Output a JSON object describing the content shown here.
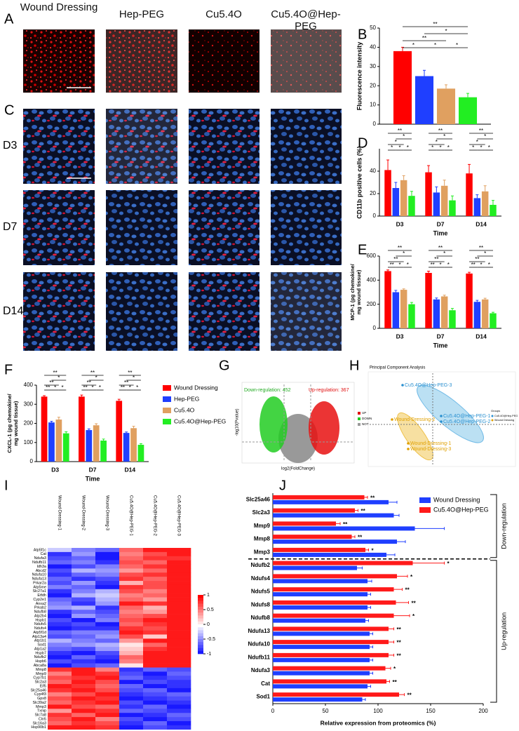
{
  "panel_labels": [
    "A",
    "B",
    "C",
    "D",
    "E",
    "F",
    "G",
    "H",
    "I",
    "J"
  ],
  "images": {
    "columns": [
      "Wound Dressing",
      "Hep-PEG",
      "Cu5.4O",
      "Cu5.4O@Hep-PEG"
    ],
    "rows": [
      "D3",
      "D7",
      "D14"
    ]
  },
  "volcano": {
    "down": "Down-regulation: 452",
    "up": "Up-regulation: 367",
    "ylabel": "-log10(Pvalue)",
    "xlabel": "log2(FoldChange)",
    "legend": [
      "UP",
      "DOWN",
      "NOT"
    ]
  },
  "pca": {
    "title": "Principal Component Analysis",
    "points": [
      "Cu5.4O@Hep-PEG-3",
      "Cu5.4O@Hep-PEG-1",
      "Cu5.4O@Hep-PEG-2",
      "Wound-Dressing-2",
      "Wound-Dressing-1",
      "Wound-Dressing-3"
    ],
    "legend_title": "Groups",
    "legend": [
      "Cu5.4O@Hep-PEG",
      "Wound Dressing"
    ]
  },
  "chart_data": [
    {
      "type": "bar",
      "ylabel": "Fluorescence intensity",
      "values": [
        38,
        25,
        18.5,
        14
      ],
      "errors": [
        2,
        3,
        2,
        2
      ],
      "colors": [
        "#ff0000",
        "#1f3fff",
        "#e0a060",
        "#22ee22"
      ],
      "ylim": [
        0,
        50
      ],
      "yticks": [
        0,
        10,
        20,
        30,
        40,
        50
      ],
      "brackets": [
        {
          "pair": [
            0,
            3
          ],
          "text": "**"
        },
        {
          "pair": [
            1,
            3
          ],
          "text": "*"
        },
        {
          "pair": [
            0,
            2
          ],
          "text": "**"
        },
        {
          "pair": [
            0,
            1
          ],
          "text": "*"
        },
        {
          "pair": [
            1,
            2
          ],
          "text": "*"
        },
        {
          "pair": [
            2,
            3
          ],
          "text": "*"
        }
      ]
    },
    {
      "type": "grouped_bar",
      "ylabel": "CD11b positive cells (%)",
      "xlabel": "Time",
      "categories": [
        "D3",
        "D7",
        "D14"
      ],
      "series": [
        {
          "color": "#ff0000",
          "values": [
            41,
            39,
            38
          ],
          "errors": [
            9,
            6,
            8
          ]
        },
        {
          "color": "#1f3fff",
          "values": [
            25,
            21,
            16
          ],
          "errors": [
            5,
            5,
            3
          ]
        },
        {
          "color": "#e0a060",
          "values": [
            32,
            27,
            22
          ],
          "errors": [
            4,
            5,
            5
          ]
        },
        {
          "color": "#22ee22",
          "values": [
            18,
            14,
            10
          ],
          "errors": [
            4,
            4,
            4
          ]
        }
      ],
      "ylim": [
        0,
        60
      ],
      "yticks": [
        0,
        20,
        40
      ],
      "brackets": [
        {
          "pair": [
            0,
            3
          ],
          "text": "**"
        },
        {
          "pair": [
            1,
            3
          ],
          "text": "*"
        },
        {
          "pair": [
            0,
            2
          ],
          "text": "*"
        },
        {
          "pair": [
            0,
            1
          ],
          "text": "*"
        },
        {
          "pair": [
            1,
            2
          ],
          "text": "*"
        },
        {
          "pair": [
            2,
            3
          ],
          "text": "*"
        }
      ]
    },
    {
      "type": "grouped_bar",
      "ylabel": "MCP-1 (pg chemokine/ mg wound tissue)",
      "xlabel": "Time",
      "categories": [
        "D3",
        "D7",
        "D14"
      ],
      "series": [
        {
          "color": "#ff0000",
          "values": [
            475,
            460,
            455
          ],
          "errors": [
            10,
            15,
            10
          ]
        },
        {
          "color": "#1f3fff",
          "values": [
            300,
            240,
            220
          ],
          "errors": [
            15,
            12,
            12
          ]
        },
        {
          "color": "#e0a060",
          "values": [
            320,
            265,
            240
          ],
          "errors": [
            8,
            10,
            10
          ]
        },
        {
          "color": "#22ee22",
          "values": [
            200,
            150,
            125
          ],
          "errors": [
            15,
            15,
            8
          ]
        }
      ],
      "ylim": [
        0,
        600
      ],
      "yticks": [
        0,
        200,
        400,
        600
      ],
      "brackets": [
        {
          "pair": [
            0,
            3
          ],
          "text": "**"
        },
        {
          "pair": [
            1,
            3
          ],
          "text": "*"
        },
        {
          "pair": [
            0,
            2
          ],
          "text": "**"
        },
        {
          "pair": [
            0,
            1
          ],
          "text": "**"
        },
        {
          "pair": [
            1,
            2
          ],
          "text": "*"
        },
        {
          "pair": [
            2,
            3
          ],
          "text": "*"
        }
      ]
    },
    {
      "type": "grouped_bar",
      "ylabel": "CXCL-1 (pg chemokine/ mg wound tissue)",
      "xlabel": "Time",
      "categories": [
        "D3",
        "D7",
        "D14"
      ],
      "legend": "right",
      "series": [
        {
          "name": "Wound Dressing",
          "color": "#ff0000",
          "values": [
            340,
            340,
            318
          ],
          "errors": [
            5,
            8,
            8
          ]
        },
        {
          "name": "Hep-PEG",
          "color": "#1f3fff",
          "values": [
            205,
            165,
            150
          ],
          "errors": [
            6,
            6,
            5
          ]
        },
        {
          "name": "Cu5.4O",
          "color": "#e0a060",
          "values": [
            220,
            190,
            175
          ],
          "errors": [
            12,
            8,
            10
          ]
        },
        {
          "name": "Cu5.4O@Hep-PEG",
          "color": "#22ee22",
          "values": [
            148,
            110,
            88
          ],
          "errors": [
            8,
            8,
            6
          ]
        }
      ],
      "ylim": [
        0,
        400
      ],
      "yticks": [
        0,
        100,
        200,
        300,
        400
      ],
      "brackets": [
        {
          "pair": [
            0,
            3
          ],
          "text": "**"
        },
        {
          "pair": [
            1,
            3
          ],
          "text": "*"
        },
        {
          "pair": [
            0,
            2
          ],
          "text": "**"
        },
        {
          "pair": [
            0,
            1
          ],
          "text": "**"
        },
        {
          "pair": [
            1,
            2
          ],
          "text": "*"
        },
        {
          "pair": [
            2,
            3
          ],
          "text": "*"
        }
      ]
    },
    {
      "type": "hbar_grouped",
      "xlabel": "Relative expression from proteomics (%)",
      "legend": "top-right",
      "categories": [
        "Slc25a46",
        "Slc2a3",
        "Mmp9",
        "Mmp8",
        "Mmp3",
        "Ndufb2",
        "Ndufs4",
        "Ndufs5",
        "Ndufs8",
        "Ndufb8",
        "Ndufa13",
        "Ndufa10",
        "Ndufb11",
        "Ndufa3",
        "Cat",
        "Sod1"
      ],
      "series": [
        {
          "name": "Wound Dressing",
          "color": "#1f3fff",
          "values": [
            110,
            115,
            135,
            118,
            108,
            80,
            90,
            90,
            90,
            88,
            92,
            92,
            92,
            92,
            90,
            85
          ],
          "errors": [
            8,
            5,
            28,
            8,
            8,
            5,
            4,
            3,
            3,
            3,
            3,
            3,
            3,
            3,
            3,
            3
          ]
        },
        {
          "name": "Cu5.4O@Hep-PEG",
          "color": "#ff1a1a",
          "values": [
            87,
            78,
            60,
            75,
            88,
            133,
            118,
            115,
            117,
            115,
            110,
            110,
            110,
            107,
            108,
            120
          ],
          "errors": [
            3,
            3,
            4,
            3,
            3,
            30,
            10,
            8,
            12,
            15,
            5,
            5,
            5,
            5,
            3,
            5
          ]
        }
      ],
      "sig": [
        "**",
        "**",
        "**",
        "**",
        "*",
        "*",
        "*",
        "**",
        "**",
        "*",
        "**",
        "**",
        "**",
        "*",
        "**",
        "**"
      ],
      "groups": [
        {
          "label": "Down-regulation",
          "range": [
            0,
            4
          ]
        },
        {
          "label": "Up-regulation",
          "range": [
            5,
            15
          ]
        }
      ],
      "xlim": [
        0,
        200
      ],
      "xticks": [
        0,
        50,
        100,
        150,
        200
      ]
    },
    {
      "type": "heatmap",
      "columns": [
        "Wound-Dressing-1",
        "Wound-Dressing-2",
        "Wound-Dressing-3",
        "Cu5.4O@Hep-PEG-1",
        "Cu5.4O@Hep-PEG-2",
        "Cu5.4O@Hep-PEG-3"
      ],
      "rows": [
        "Atp5f1c",
        "Cat",
        "Ndufa3",
        "Ndufb11",
        "Idh3a",
        "Abcd2",
        "Ndufa10",
        "Ndufa13",
        "Prkar2a",
        "Atp5me",
        "Slc27a1",
        "Etfdh",
        "Cyp2e1",
        "Anxa2",
        "Prkab2",
        "Ndufb8",
        "Atp2b4",
        "Hspb1",
        "Ndufs5",
        "Ndufs4",
        "Atp5f1d",
        "Atp13a4",
        "Atp1b1",
        "Sod1",
        "Atp1a2",
        "Hspb7",
        "Ndufb2",
        "Hspb6",
        "Abca8a",
        "Mmp8",
        "Mmp9",
        "Cyp7b1",
        "Slc2a3",
        "Eif5",
        "Slc25a46",
        "Cyp4f3",
        "Gpx8",
        "Slc39a2",
        "Mmp3",
        "Txnip",
        "Slc7a8",
        "Cln5",
        "Slc16a3",
        "Hsp90b1"
      ],
      "zlim": [
        -1,
        1
      ],
      "zticks": [
        1,
        0.5,
        0,
        -0.5,
        -1
      ],
      "values": [
        [
          -0.2,
          -0.5,
          -0.6,
          0.6,
          0.9,
          0.9
        ],
        [
          -0.8,
          -0.4,
          -0.9,
          0.5,
          0.7,
          0.9
        ],
        [
          -0.7,
          -0.6,
          -0.9,
          0.6,
          0.8,
          0.8
        ],
        [
          -0.6,
          -0.5,
          -0.8,
          0.7,
          0.6,
          0.9
        ],
        [
          -0.9,
          -0.7,
          -0.5,
          0.6,
          0.8,
          0.9
        ],
        [
          -0.7,
          -0.3,
          -0.4,
          0.4,
          0.6,
          0.9
        ],
        [
          -0.8,
          -0.6,
          -0.5,
          0.7,
          0.8,
          0.9
        ],
        [
          -0.6,
          -0.8,
          -0.7,
          0.8,
          0.6,
          0.9
        ],
        [
          -0.7,
          -0.4,
          -0.8,
          0.3,
          0.7,
          0.9
        ],
        [
          -0.5,
          -0.6,
          -0.9,
          0.8,
          0.7,
          0.9
        ],
        [
          -0.8,
          -0.5,
          -0.3,
          0.7,
          0.5,
          0.9
        ],
        [
          -0.9,
          -0.3,
          -0.2,
          0.5,
          0.6,
          0.9
        ],
        [
          -0.6,
          -0.7,
          -0.3,
          0.6,
          0.4,
          0.9
        ],
        [
          -0.5,
          -0.8,
          -0.4,
          0.9,
          0.8,
          0.9
        ],
        [
          -0.4,
          -0.3,
          -0.8,
          0.6,
          0.3,
          0.9
        ],
        [
          -0.8,
          -0.6,
          -0.7,
          0.5,
          0.4,
          0.9
        ],
        [
          -0.9,
          -0.4,
          -0.6,
          0.6,
          0.7,
          0.9
        ],
        [
          -0.7,
          -0.9,
          -0.5,
          0.7,
          0.9,
          0.9
        ],
        [
          -0.8,
          -0.7,
          -0.9,
          0.6,
          0.8,
          0.9
        ],
        [
          -0.9,
          -0.8,
          -0.8,
          0.8,
          0.7,
          0.9
        ],
        [
          -0.6,
          -0.5,
          -0.5,
          0.9,
          0.8,
          0.9
        ],
        [
          -0.7,
          -0.6,
          -0.4,
          0.7,
          0.2,
          0.9
        ],
        [
          -0.3,
          -0.5,
          -0.6,
          0.4,
          0.9,
          0.9
        ],
        [
          -0.5,
          -0.4,
          -0.3,
          0.1,
          0.6,
          0.9
        ],
        [
          -0.6,
          -0.7,
          -0.4,
          0.2,
          0.8,
          0.9
        ],
        [
          -0.8,
          -0.9,
          -0.7,
          0.3,
          0.9,
          0.9
        ],
        [
          -0.9,
          -0.6,
          -0.8,
          0.6,
          0.9,
          0.9
        ],
        [
          -0.7,
          -0.8,
          -0.9,
          0.5,
          0.9,
          0.9
        ],
        [
          -0.9,
          -0.7,
          -0.6,
          0.1,
          0.9,
          0.9
        ],
        [
          0.8,
          0.9,
          0.5,
          -0.8,
          -0.6,
          -0.7
        ],
        [
          0.5,
          0.9,
          0.8,
          -0.7,
          -0.9,
          -0.6
        ],
        [
          0.7,
          0.8,
          0.9,
          -0.6,
          -0.8,
          -0.7
        ],
        [
          0.6,
          0.9,
          0.7,
          -0.9,
          -0.7,
          -0.8
        ],
        [
          0.9,
          0.8,
          0.6,
          -0.6,
          -0.9,
          -0.8
        ],
        [
          0.8,
          0.9,
          0.7,
          -0.7,
          -0.6,
          -0.9
        ],
        [
          0.5,
          0.7,
          0.9,
          -0.8,
          -0.7,
          -0.6
        ],
        [
          0.7,
          0.9,
          0.8,
          -0.9,
          -0.8,
          -0.7
        ],
        [
          0.6,
          0.8,
          0.9,
          -0.7,
          -0.9,
          -0.8
        ],
        [
          0.9,
          0.7,
          0.6,
          -0.8,
          -0.6,
          -0.9
        ],
        [
          0.4,
          0.9,
          0.8,
          -0.6,
          -0.7,
          -0.8
        ],
        [
          0.8,
          0.6,
          0.9,
          -0.9,
          -0.8,
          -0.6
        ],
        [
          0.7,
          0.9,
          0.5,
          -0.7,
          -0.9,
          -0.7
        ],
        [
          0.6,
          0.8,
          0.7,
          -0.8,
          -0.6,
          -0.9
        ],
        [
          0.9,
          0.9,
          0.8,
          -0.9,
          -0.7,
          -0.8
        ]
      ]
    }
  ]
}
